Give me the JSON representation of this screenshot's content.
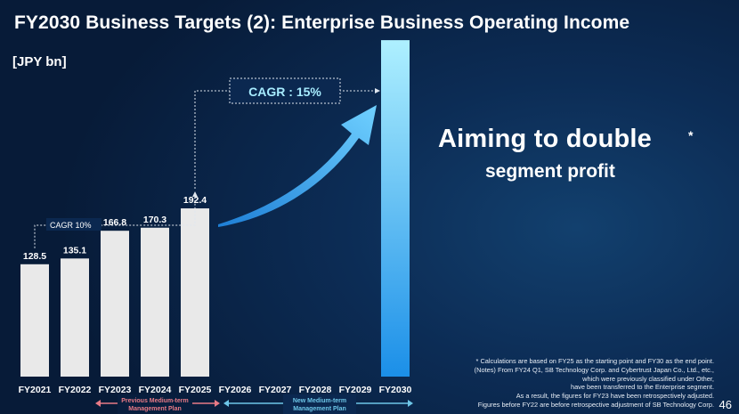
{
  "slide": {
    "title": "FY2030 Business Targets (2): Enterprise Business Operating Income",
    "unit": "[JPY bn]",
    "slogan_line1": "Aiming to double",
    "slogan_mark": "*",
    "slogan_line2": "segment profit",
    "notes": [
      "* Calculations are based on FY25 as the starting point and FY30 as the end point.",
      "(Notes) From FY24 Q1, SB Technology Corp. and Cybertrust Japan Co., Ltd., etc.,",
      "which were previously classified under Other,",
      "have been transferred to the Enterprise segment.",
      "As a result, the figures for FY23 have been retrospectively adjusted.",
      "Figures before FY22 are before retrospective adjustment of SB Technology Corp."
    ],
    "page_number": "46"
  },
  "chart_data": {
    "type": "bar",
    "categories": [
      "FY2021",
      "FY2022",
      "FY2023",
      "FY2024",
      "FY2025",
      "FY2026",
      "FY2027",
      "FY2028",
      "FY2029",
      "FY2030"
    ],
    "values": [
      128.5,
      135.1,
      166.8,
      170.3,
      192.4,
      null,
      null,
      null,
      null,
      null
    ],
    "data_labels": [
      "128.5",
      "135.1",
      "166.8",
      "170.3",
      "192.4",
      "",
      "",
      "",
      "",
      ""
    ],
    "target_bar": {
      "category": "FY2030",
      "value": 384.8,
      "label": ""
    },
    "ylim": [
      0,
      390
    ],
    "grid": false,
    "annotations": {
      "cagr_past": "CAGR 10%",
      "cagr_target": "CAGR : 15%",
      "prev_plan": "Previous Medium-term\nManagement Plan",
      "new_plan": "New Medium-term\nManagement Plan"
    },
    "colors": {
      "bar": "#e9e9e9",
      "target_top": "#aef0ff",
      "target_bottom": "#1b8fe8",
      "arrow": "#3faaf5",
      "prev_plan": "#e87a86",
      "new_plan": "#6dc6e8",
      "cagr_box_text": "#a7ecff"
    }
  }
}
